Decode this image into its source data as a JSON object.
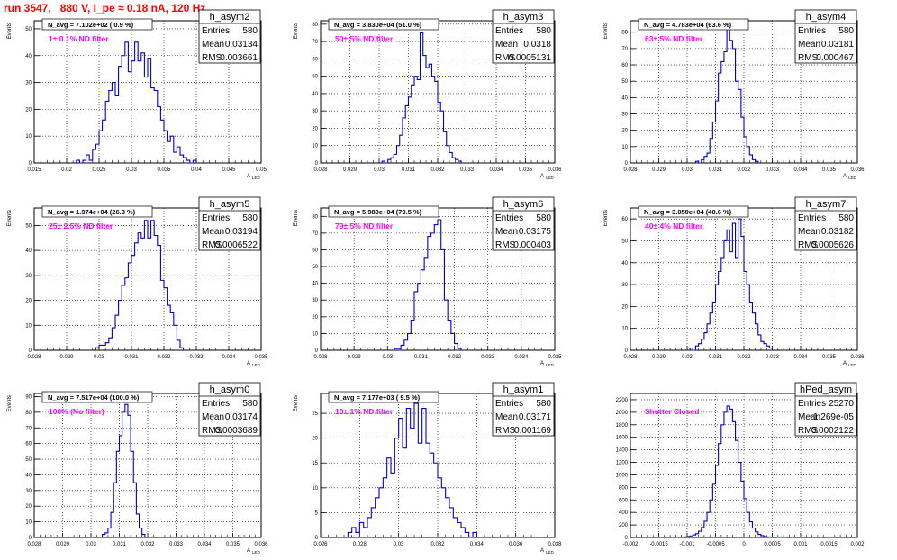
{
  "page": {
    "title": "run 3547,   880 V, I_pe ≈ 0.18 nA, 120 Hz"
  },
  "colors": {
    "title": "#ff0000",
    "histogram": "#0000cc",
    "annotation": "#ff00ff",
    "axis": "#000000",
    "grid": "#000000"
  },
  "chart_data": [
    {
      "type": "histogram",
      "name": "h_asym2",
      "stats": {
        "entries_label": "Entries",
        "entries": "580",
        "mean_label": "Mean",
        "mean": "0.03134",
        "rms_label": "RMS",
        "rms": "0.003661"
      },
      "navg": "N_avg = 7.102e+02 ( 0.9 %)",
      "filter": "1± 0.1% ND filter",
      "xlabel": "A",
      "xlabel_sub": "LED",
      "ylabel": "Events",
      "xlim": [
        0.015,
        0.05
      ],
      "ylim": [
        0,
        53
      ],
      "grid": true,
      "xticks": [
        0.015,
        0.02,
        0.025,
        0.03,
        0.035,
        0.04,
        0.045,
        0.05
      ],
      "xticklabels": [
        "0.015",
        "0.02",
        "0.025",
        "0.03",
        "0.035",
        "0.04",
        "0.045",
        "0.05"
      ],
      "yticks": [
        0,
        10,
        20,
        30,
        40,
        50
      ],
      "yticklabels": [
        "0",
        "10",
        "20",
        "30",
        "40",
        "50"
      ],
      "bin_start": 0.0215,
      "bin_width": 0.0005,
      "counts": [
        1,
        0,
        1,
        3,
        1,
        5,
        7,
        12,
        16,
        23,
        27,
        30,
        25,
        36,
        40,
        45,
        34,
        38,
        45,
        38,
        41,
        32,
        39,
        28,
        27,
        21,
        16,
        12,
        8,
        10,
        4,
        6,
        3,
        2,
        1,
        0,
        1
      ]
    },
    {
      "type": "histogram",
      "name": "h_asym3",
      "stats": {
        "entries_label": "Entries",
        "entries": "580",
        "mean_label": "Mean",
        "mean": "0.0318",
        "rms_label": "RMS",
        "rms": "0.0005131"
      },
      "navg": "N_avg = 3.830e+04 (51.0 %)",
      "filter": "50± 5% ND filter",
      "xlabel": "A",
      "xlabel_sub": "LED",
      "ylabel": "Events",
      "xlim": [
        0.028,
        0.036
      ],
      "ylim": [
        0,
        82
      ],
      "grid": true,
      "xticks": [
        0.028,
        0.029,
        0.03,
        0.031,
        0.032,
        0.033,
        0.034,
        0.035,
        0.036
      ],
      "xticklabels": [
        "0.028",
        "0.029",
        "0.03",
        "0.031",
        "0.032",
        "0.033",
        "0.034",
        "0.035",
        "0.036"
      ],
      "yticks": [
        0,
        10,
        20,
        30,
        40,
        50,
        60,
        70,
        80
      ],
      "yticklabels": [
        "0",
        "10",
        "20",
        "30",
        "40",
        "50",
        "60",
        "70",
        "80"
      ],
      "bin_start": 0.0301,
      "bin_width": 0.0001,
      "counts": [
        1,
        0,
        2,
        3,
        5,
        10,
        16,
        26,
        33,
        38,
        45,
        50,
        48,
        75,
        62,
        55,
        57,
        50,
        47,
        35,
        30,
        18,
        10,
        6,
        3,
        2,
        1
      ]
    },
    {
      "type": "histogram",
      "name": "h_asym4",
      "stats": {
        "entries_label": "Entries",
        "entries": "580",
        "mean_label": "Mean",
        "mean": "0.03181",
        "rms_label": "RMS",
        "rms": "0.000467"
      },
      "navg": "N_avg = 4.783e+04 (63.6 %)",
      "filter": "63± 5% ND filter",
      "xlabel": "A",
      "xlabel_sub": "LED",
      "ylabel": "Events",
      "xlim": [
        0.028,
        0.036
      ],
      "ylim": [
        0,
        87
      ],
      "grid": true,
      "xticks": [
        0.028,
        0.029,
        0.03,
        0.031,
        0.032,
        0.033,
        0.034,
        0.035,
        0.036
      ],
      "xticklabels": [
        "0.028",
        "0.029",
        "0.03",
        "0.031",
        "0.032",
        "0.033",
        "0.034",
        "0.035",
        "0.036"
      ],
      "yticks": [
        0,
        10,
        20,
        30,
        40,
        50,
        60,
        70,
        80
      ],
      "yticklabels": [
        "0",
        "10",
        "20",
        "30",
        "40",
        "50",
        "60",
        "70",
        "80"
      ],
      "bin_start": 0.0303,
      "bin_width": 0.0001,
      "counts": [
        1,
        0,
        2,
        4,
        6,
        15,
        25,
        38,
        55,
        62,
        68,
        82,
        75,
        70,
        50,
        45,
        28,
        16,
        10,
        5,
        2,
        1
      ]
    },
    {
      "type": "histogram",
      "name": "h_asym5",
      "stats": {
        "entries_label": "Entries",
        "entries": "580",
        "mean_label": "Mean",
        "mean": "0.03194",
        "rms_label": "RMS",
        "rms": "0.0006522"
      },
      "navg": "N_avg = 1.974e+04 (26.3 %)",
      "filter": "25± 2.5% ND filter",
      "xlabel": "A",
      "xlabel_sub": "LED",
      "ylabel": "Events",
      "xlim": [
        0.028,
        0.035
      ],
      "ylim": [
        0,
        57
      ],
      "grid": true,
      "xticks": [
        0.028,
        0.029,
        0.03,
        0.031,
        0.032,
        0.033,
        0.034,
        0.035
      ],
      "xticklabels": [
        "0.028",
        "0.029",
        "0.03",
        "0.031",
        "0.032",
        "0.033",
        "0.034",
        "0.035"
      ],
      "yticks": [
        0,
        10,
        20,
        30,
        40,
        50
      ],
      "yticklabels": [
        "0",
        "10",
        "20",
        "30",
        "40",
        "50"
      ],
      "bin_start": 0.0299,
      "bin_width": 0.0001,
      "counts": [
        1,
        2,
        2,
        3,
        5,
        9,
        14,
        20,
        26,
        29,
        35,
        38,
        43,
        47,
        45,
        52,
        45,
        52,
        46,
        42,
        28,
        25,
        18,
        15,
        10,
        4,
        1
      ]
    },
    {
      "type": "histogram",
      "name": "h_asym6",
      "stats": {
        "entries_label": "Entries",
        "entries": "580",
        "mean_label": "Mean",
        "mean": "0.03175",
        "rms_label": "RMS",
        "rms": "0.000403"
      },
      "navg": "N_avg = 5.980e+04 (79.5 %)",
      "filter": "79± 5% ND filter",
      "xlabel": "A",
      "xlabel_sub": "LED",
      "ylabel": "Events",
      "xlim": [
        0.028,
        0.035
      ],
      "ylim": [
        0,
        85
      ],
      "grid": true,
      "xticks": [
        0.028,
        0.029,
        0.03,
        0.031,
        0.032,
        0.033,
        0.034,
        0.035
      ],
      "xticklabels": [
        "0.028",
        "0.029",
        "0.03",
        "0.031",
        "0.032",
        "0.033",
        "0.034",
        "0.035"
      ],
      "yticks": [
        0,
        10,
        20,
        30,
        40,
        50,
        60,
        70,
        80
      ],
      "yticklabels": [
        "0",
        "10",
        "20",
        "30",
        "40",
        "50",
        "60",
        "70",
        "80"
      ],
      "bin_start": 0.0302,
      "bin_width": 0.0001,
      "counts": [
        1,
        1,
        3,
        6,
        10,
        18,
        35,
        40,
        48,
        55,
        68,
        70,
        75,
        78,
        60,
        30,
        18,
        10,
        4,
        1
      ]
    },
    {
      "type": "histogram",
      "name": "h_asym7",
      "stats": {
        "entries_label": "Entries",
        "entries": "580",
        "mean_label": "Mean",
        "mean": "0.03182",
        "rms_label": "RMS",
        "rms": "0.0005626"
      },
      "navg": "N_avg = 3.050e+04 (40.6 %)",
      "filter": "40± 4% ND filter",
      "xlabel": "A",
      "xlabel_sub": "LED",
      "ylabel": "Events",
      "xlim": [
        0.028,
        0.036
      ],
      "ylim": [
        0,
        65
      ],
      "grid": true,
      "xticks": [
        0.028,
        0.029,
        0.03,
        0.031,
        0.032,
        0.033,
        0.034,
        0.035,
        0.036
      ],
      "xticklabels": [
        "0.028",
        "0.029",
        "0.03",
        "0.031",
        "0.032",
        "0.033",
        "0.034",
        "0.035",
        "0.036"
      ],
      "yticks": [
        0,
        10,
        20,
        30,
        40,
        50,
        60
      ],
      "yticklabels": [
        "0",
        "10",
        "20",
        "30",
        "40",
        "50",
        "60"
      ],
      "bin_start": 0.0301,
      "bin_width": 0.0001,
      "counts": [
        1,
        0,
        2,
        3,
        5,
        8,
        12,
        17,
        22,
        30,
        36,
        42,
        50,
        55,
        45,
        58,
        42,
        60,
        52,
        36,
        30,
        22,
        17,
        12,
        7,
        4,
        3,
        2,
        1
      ]
    },
    {
      "type": "histogram",
      "name": "h_asym0",
      "stats": {
        "entries_label": "Entries",
        "entries": "580",
        "mean_label": "Mean",
        "mean": "0.03174",
        "rms_label": "RMS",
        "rms": "0.0003689"
      },
      "navg": "N_avg = 7.517e+04 (100.0 %)",
      "filter": "100% (No filter)",
      "xlabel": "A",
      "xlabel_sub": "LED",
      "ylabel": "Events",
      "xlim": [
        0.028,
        0.036
      ],
      "ylim": [
        0,
        92
      ],
      "grid": true,
      "xticks": [
        0.028,
        0.029,
        0.03,
        0.031,
        0.032,
        0.033,
        0.034,
        0.035,
        0.036
      ],
      "xticklabels": [
        "0.028",
        "0.029",
        "0.03",
        "0.031",
        "0.032",
        "0.033",
        "0.034",
        "0.035",
        "0.036"
      ],
      "yticks": [
        0,
        10,
        20,
        30,
        40,
        50,
        60,
        70,
        80,
        90
      ],
      "yticklabels": [
        "0",
        "10",
        "20",
        "30",
        "40",
        "50",
        "60",
        "70",
        "80",
        "90"
      ],
      "bin_start": 0.0304,
      "bin_width": 0.0001,
      "counts": [
        2,
        3,
        6,
        16,
        35,
        55,
        65,
        80,
        85,
        78,
        55,
        35,
        15,
        6,
        2
      ]
    },
    {
      "type": "histogram",
      "name": "h_asym1",
      "stats": {
        "entries_label": "Entries",
        "entries": "580",
        "mean_label": "Mean",
        "mean": "0.03171",
        "rms_label": "RMS",
        "rms": "0.001169"
      },
      "navg": "N_avg = 7.177e+03 ( 9.5 %)",
      "filter": "10± 1% ND filter",
      "xlabel": "A",
      "xlabel_sub": "LED",
      "ylabel": "Events",
      "xlim": [
        0.026,
        0.038
      ],
      "ylim": [
        0,
        29
      ],
      "grid": true,
      "xticks": [
        0.026,
        0.028,
        0.03,
        0.032,
        0.034,
        0.036,
        0.038
      ],
      "xticklabels": [
        "0.026",
        "0.028",
        "0.03",
        "0.032",
        "0.034",
        "0.036",
        "0.038"
      ],
      "yticks": [
        0,
        5,
        10,
        15,
        20,
        25
      ],
      "yticklabels": [
        "0",
        "5",
        "10",
        "15",
        "20",
        "25"
      ],
      "bin_start": 0.0274,
      "bin_width": 0.0002,
      "counts": [
        1,
        2,
        1,
        3,
        2,
        4,
        6,
        8,
        10,
        12,
        16,
        13,
        20,
        24,
        18,
        26,
        22,
        27,
        19,
        26,
        19,
        17,
        15,
        12,
        10,
        8,
        6,
        4,
        3,
        2,
        1,
        0,
        1
      ]
    },
    {
      "type": "histogram",
      "name": "hPed_asym",
      "stats": {
        "entries_label": "Entries",
        "entries": "25270",
        "mean_label": "Mean",
        "mean": "-1.269e-05",
        "rms_label": "RMS",
        "rms": "0.0002122"
      },
      "navg": "",
      "filter": "Shutter Closed",
      "xlabel": "",
      "xlabel_sub": "",
      "ylabel": "",
      "xlim": [
        -0.002,
        0.002
      ],
      "ylim": [
        0,
        2300
      ],
      "grid": true,
      "xticks": [
        -0.002,
        -0.0015,
        -0.001,
        -0.0005,
        0,
        0.0005,
        0.001,
        0.0015,
        0.002
      ],
      "xticklabels": [
        "-0.002",
        "-0.0015",
        "-0.001",
        "-0.0005",
        "0",
        "0.0005",
        "0.001",
        "0.0015",
        "0.002"
      ],
      "yticks": [
        0,
        200,
        400,
        600,
        800,
        1000,
        1200,
        1400,
        1600,
        1800,
        2000,
        2200
      ],
      "yticklabels": [
        "0",
        "200",
        "400",
        "600",
        "800",
        "1000",
        "1200",
        "1400",
        "1600",
        "1800",
        "2000",
        "2200"
      ],
      "bin_start": -0.0011,
      "bin_width": 5e-05,
      "counts": [
        5,
        10,
        15,
        25,
        40,
        60,
        100,
        160,
        260,
        400,
        600,
        850,
        1150,
        1500,
        1800,
        2000,
        2100,
        2050,
        1850,
        1550,
        1200,
        900,
        620,
        400,
        250,
        150,
        90,
        50,
        30,
        15,
        8,
        4,
        2,
        1,
        1,
        0,
        1
      ]
    }
  ]
}
